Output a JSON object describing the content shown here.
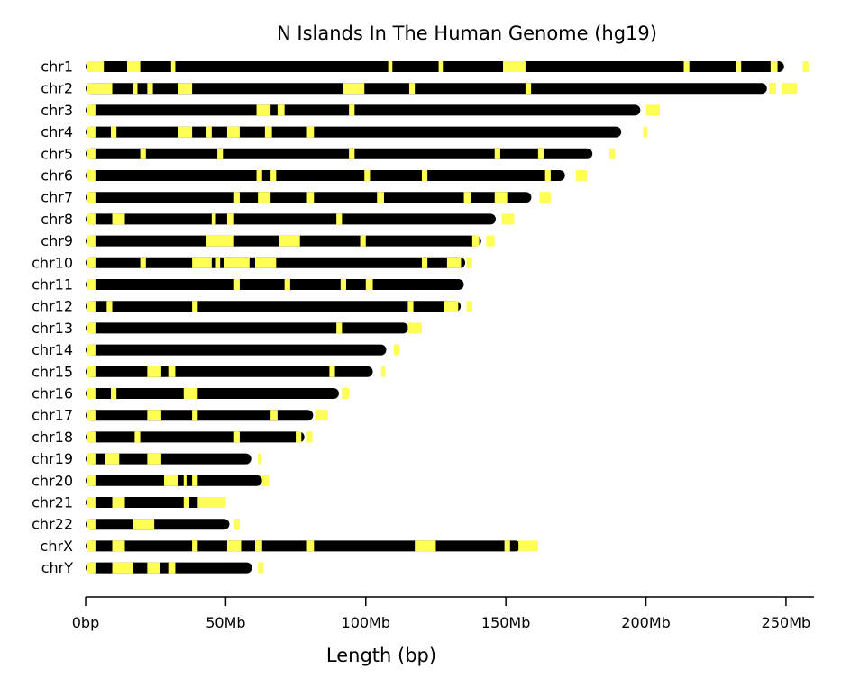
{
  "chart_data": {
    "type": "bar",
    "title": "N Islands In The Human Genome (hg19)",
    "xlabel": "Length (bp)",
    "ylabel": "",
    "xlim": [
      0,
      260
    ],
    "x_unit": "Mb",
    "xticks": [
      {
        "value": 0,
        "label": "0bp"
      },
      {
        "value": 50,
        "label": "50Mb"
      },
      {
        "value": 100,
        "label": "100Mb"
      },
      {
        "value": 150,
        "label": "150Mb"
      },
      {
        "value": 200,
        "label": "200Mb"
      },
      {
        "value": 250,
        "label": "250Mb"
      }
    ],
    "colors": {
      "chromosome": "#000000",
      "n_island": "#ffff55"
    },
    "chromosomes": [
      {
        "name": "chr1",
        "length": 249.3,
        "islands": [
          [
            0.5,
            6.5
          ],
          [
            14.8,
            19.5
          ],
          [
            30.5,
            32.0
          ],
          [
            108,
            109.5
          ],
          [
            126,
            127.5
          ],
          [
            149,
            157
          ],
          [
            213.5,
            215.5
          ],
          [
            232,
            234
          ],
          [
            244.5,
            247
          ],
          [
            256,
            258
          ]
        ]
      },
      {
        "name": "chr2",
        "length": 243.2,
        "islands": [
          [
            0.5,
            9.5
          ],
          [
            17,
            18.5
          ],
          [
            22,
            24
          ],
          [
            33,
            38
          ],
          [
            92,
            99.5
          ],
          [
            115.5,
            117.5
          ],
          [
            157,
            159
          ],
          [
            244,
            246.5
          ],
          [
            248.5,
            254
          ]
        ]
      },
      {
        "name": "chr3",
        "length": 198.0,
        "islands": [
          [
            0.5,
            3.5
          ],
          [
            61,
            66
          ],
          [
            68.5,
            71
          ],
          [
            94,
            96
          ],
          [
            200,
            205
          ]
        ]
      },
      {
        "name": "chr4",
        "length": 191.2,
        "islands": [
          [
            0.5,
            3.5
          ],
          [
            9,
            11
          ],
          [
            33,
            38
          ],
          [
            43,
            45
          ],
          [
            50.5,
            55
          ],
          [
            64,
            66.5
          ],
          [
            79,
            81.5
          ],
          [
            199,
            200.5
          ]
        ]
      },
      {
        "name": "chr5",
        "length": 180.9,
        "islands": [
          [
            0.5,
            3.5
          ],
          [
            19.5,
            21.5
          ],
          [
            47,
            49
          ],
          [
            94,
            96
          ],
          [
            146,
            148
          ],
          [
            161.5,
            163.5
          ],
          [
            187,
            189
          ]
        ]
      },
      {
        "name": "chr6",
        "length": 171.1,
        "islands": [
          [
            0.5,
            3.5
          ],
          [
            61,
            63
          ],
          [
            66,
            68
          ],
          [
            99.5,
            101.5
          ],
          [
            120,
            122
          ],
          [
            164,
            166
          ],
          [
            175,
            179
          ]
        ]
      },
      {
        "name": "chr7",
        "length": 159.1,
        "islands": [
          [
            0.5,
            3.5
          ],
          [
            53,
            55
          ],
          [
            61.5,
            66
          ],
          [
            79,
            81.5
          ],
          [
            104,
            106.5
          ],
          [
            135,
            137.5
          ],
          [
            146,
            150.5
          ],
          [
            162,
            166
          ]
        ]
      },
      {
        "name": "chr8",
        "length": 146.4,
        "islands": [
          [
            0.5,
            3.5
          ],
          [
            9.5,
            14
          ],
          [
            45,
            46.5
          ],
          [
            50.5,
            53
          ],
          [
            89.5,
            91.5
          ],
          [
            148.5,
            153
          ]
        ]
      },
      {
        "name": "chr9",
        "length": 141.2,
        "islands": [
          [
            0.5,
            3.5
          ],
          [
            43,
            53
          ],
          [
            69,
            76.5
          ],
          [
            98,
            100
          ],
          [
            138,
            140.5
          ],
          [
            143,
            146
          ]
        ]
      },
      {
        "name": "chr10",
        "length": 135.5,
        "islands": [
          [
            0.5,
            3.5
          ],
          [
            19.5,
            21.5
          ],
          [
            38,
            45
          ],
          [
            46.5,
            48
          ],
          [
            49.5,
            58.5
          ],
          [
            60.5,
            68
          ],
          [
            120,
            122
          ],
          [
            129,
            134
          ],
          [
            136,
            138
          ]
        ]
      },
      {
        "name": "chr11",
        "length": 135.0,
        "islands": [
          [
            0.5,
            3.5
          ],
          [
            53,
            55
          ],
          [
            71,
            73
          ],
          [
            91,
            93
          ],
          [
            100,
            102.5
          ]
        ]
      },
      {
        "name": "chr12",
        "length": 133.9,
        "islands": [
          [
            0.5,
            3.5
          ],
          [
            7.5,
            9.5
          ],
          [
            38,
            40
          ],
          [
            115,
            117
          ],
          [
            128,
            133
          ],
          [
            136,
            138
          ]
        ]
      },
      {
        "name": "chr13",
        "length": 115.2,
        "islands": [
          [
            0.5,
            3.5
          ],
          [
            89.5,
            91.5
          ],
          [
            115,
            120
          ]
        ]
      },
      {
        "name": "chr14",
        "length": 107.3,
        "islands": [
          [
            0.5,
            3.5
          ],
          [
            110,
            112
          ]
        ]
      },
      {
        "name": "chr15",
        "length": 102.5,
        "islands": [
          [
            0.5,
            3.5
          ],
          [
            22,
            27
          ],
          [
            29.5,
            32
          ],
          [
            87,
            89
          ],
          [
            105.5,
            107
          ]
        ]
      },
      {
        "name": "chr16",
        "length": 90.4,
        "islands": [
          [
            0.5,
            3.5
          ],
          [
            9,
            11
          ],
          [
            35,
            40
          ],
          [
            91.5,
            94
          ]
        ]
      },
      {
        "name": "chr17",
        "length": 81.2,
        "islands": [
          [
            0.5,
            3.5
          ],
          [
            22,
            27
          ],
          [
            38,
            40
          ],
          [
            66,
            68.5
          ],
          [
            82,
            86.5
          ]
        ]
      },
      {
        "name": "chr18",
        "length": 78.1,
        "islands": [
          [
            0.5,
            3.5
          ],
          [
            17.5,
            19.5
          ],
          [
            53,
            55
          ],
          [
            75,
            77
          ],
          [
            79,
            81
          ]
        ]
      },
      {
        "name": "chr19",
        "length": 59.1,
        "islands": [
          [
            0.5,
            3.5
          ],
          [
            7,
            12
          ],
          [
            22,
            27
          ],
          [
            61.5,
            62.5
          ]
        ]
      },
      {
        "name": "chr20",
        "length": 63.0,
        "islands": [
          [
            0.5,
            3.5
          ],
          [
            28,
            33
          ],
          [
            35,
            36
          ],
          [
            38,
            40
          ],
          [
            63,
            65.5
          ]
        ]
      },
      {
        "name": "chr21",
        "length": 48.1,
        "islands": [
          [
            0.5,
            3.5
          ],
          [
            9.5,
            14
          ],
          [
            35,
            37
          ],
          [
            40,
            50
          ]
        ]
      },
      {
        "name": "chr22",
        "length": 51.3,
        "islands": [
          [
            0.5,
            3.5
          ],
          [
            17,
            24.5
          ],
          [
            53,
            55
          ]
        ]
      },
      {
        "name": "chrX",
        "length": 155.3,
        "islands": [
          [
            0.5,
            3.5
          ],
          [
            9.5,
            14
          ],
          [
            38,
            40
          ],
          [
            50.5,
            55.5
          ],
          [
            60.5,
            63
          ],
          [
            79,
            81.5
          ],
          [
            117.5,
            125
          ],
          [
            149.5,
            151.5
          ],
          [
            154.5,
            161.5
          ]
        ]
      },
      {
        "name": "chrY",
        "length": 59.4,
        "islands": [
          [
            0.5,
            3.5
          ],
          [
            9.5,
            17
          ],
          [
            22,
            26.5
          ],
          [
            29.5,
            32
          ],
          [
            61.5,
            63.5
          ]
        ]
      }
    ]
  }
}
